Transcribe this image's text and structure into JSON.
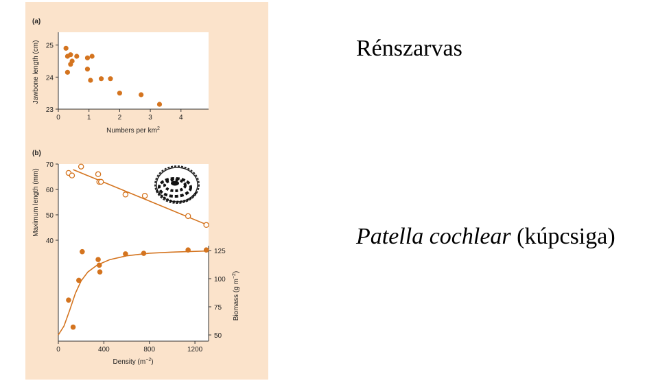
{
  "captions": {
    "reindeer": "Rénszarvas",
    "patella_name": "Patella cochlear",
    "patella_common": "(kúpcsiga)"
  },
  "colors": {
    "accent": "#d4741f",
    "panel_bg": "#fbe3cb",
    "plot_bg": "#ffffff"
  },
  "chart_data": [
    {
      "type": "scatter",
      "panel_label": "(a)",
      "xlabel": "Numbers per km",
      "xlabel_sup": "2",
      "ylabel": "Jawbone length (cm)",
      "xlim": [
        0,
        4.9
      ],
      "ylim": [
        23,
        25.4
      ],
      "xticks": [
        0,
        1,
        2,
        3,
        4
      ],
      "yticks": [
        23,
        24,
        25
      ],
      "grid": false,
      "series": [
        {
          "marker": "filled-circle",
          "points": [
            [
              0.25,
              24.9
            ],
            [
              0.3,
              24.65
            ],
            [
              0.4,
              24.7
            ],
            [
              0.45,
              24.5
            ],
            [
              0.4,
              24.4
            ],
            [
              0.6,
              24.65
            ],
            [
              0.3,
              24.15
            ],
            [
              0.95,
              24.6
            ],
            [
              1.1,
              24.65
            ],
            [
              0.95,
              24.25
            ],
            [
              1.05,
              23.9
            ],
            [
              1.4,
              23.95
            ],
            [
              1.7,
              23.95
            ],
            [
              2.0,
              23.5
            ],
            [
              2.7,
              23.45
            ],
            [
              3.3,
              23.15
            ]
          ]
        }
      ]
    },
    {
      "type": "scatter",
      "panel_label": "(b)",
      "xlabel": "Density (m",
      "xlabel_sup": "−2",
      "xlabel_end": ")",
      "ylabel": "Maximum length (mm)",
      "ylabel_right": "Biomass (g m",
      "ylabel_right_sup": "−2",
      "ylabel_right_end": ")",
      "xlim": [
        0,
        1320
      ],
      "xticks": [
        0,
        400,
        800,
        1200
      ],
      "ylim_left": [
        40,
        70
      ],
      "yticks_left": [
        40,
        50,
        60,
        70
      ],
      "ylim_right": [
        50,
        125
      ],
      "yticks_right": [
        50,
        75,
        100,
        125
      ],
      "grid": false,
      "series": [
        {
          "axis": "left",
          "marker": "open-circle",
          "points": [
            [
              90,
              66.5
            ],
            [
              120,
              65.5
            ],
            [
              200,
              69
            ],
            [
              350,
              66
            ],
            [
              360,
              63
            ],
            [
              375,
              63
            ],
            [
              590,
              58
            ],
            [
              760,
              57.5
            ],
            [
              1140,
              49.5
            ],
            [
              1300,
              46
            ]
          ],
          "fit_line": [
            [
              130,
              67.8
            ],
            [
              1300,
              46.2
            ]
          ]
        },
        {
          "axis": "right",
          "marker": "filled-circle",
          "points": [
            [
              90,
              81
            ],
            [
              130,
              57
            ],
            [
              180,
              98.5
            ],
            [
              210,
              124
            ],
            [
              350,
              117
            ],
            [
              360,
              112
            ],
            [
              365,
              106
            ],
            [
              590,
              122
            ],
            [
              750,
              122.5
            ],
            [
              1140,
              125.5
            ],
            [
              1300,
              125.5
            ]
          ],
          "fit_curve": [
            [
              0,
              50
            ],
            [
              50,
              58
            ],
            [
              100,
              72
            ],
            [
              150,
              87
            ],
            [
              200,
              98
            ],
            [
              260,
              106
            ],
            [
              340,
              112
            ],
            [
              450,
              116.8
            ],
            [
              600,
              120.3
            ],
            [
              800,
              122.6
            ],
            [
              1000,
              123.6
            ],
            [
              1300,
              124.6
            ]
          ]
        }
      ]
    }
  ]
}
